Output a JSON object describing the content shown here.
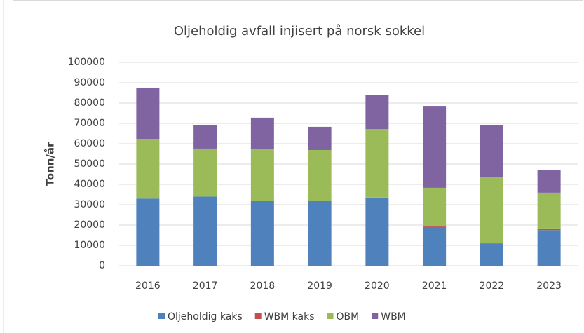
{
  "chart_data": {
    "type": "stacked_bar",
    "title": "Oljeholdig avfall injisert på norsk sokkel",
    "y_label": "Tonn/år",
    "categories": [
      "2016",
      "2017",
      "2018",
      "2019",
      "2020",
      "2021",
      "2022",
      "2023"
    ],
    "series": [
      {
        "name": "Oljeholdig kaks",
        "color": "#4f81bd",
        "values": [
          33000,
          34000,
          32000,
          32000,
          33500,
          19000,
          11000,
          17500
        ]
      },
      {
        "name": "WBM kaks",
        "color": "#c0504d",
        "values": [
          0,
          0,
          0,
          0,
          0,
          500,
          0,
          800
        ]
      },
      {
        "name": "OBM",
        "color": "#9bbb59",
        "values": [
          29400,
          23600,
          25200,
          24900,
          33700,
          18800,
          32400,
          17600
        ]
      },
      {
        "name": "WBM",
        "color": "#8064a2",
        "values": [
          25200,
          11700,
          15600,
          11400,
          16900,
          40300,
          25600,
          11300
        ]
      }
    ],
    "ylim": [
      0,
      100000
    ],
    "yticks": [
      0,
      10000,
      20000,
      30000,
      40000,
      50000,
      60000,
      70000,
      80000,
      90000,
      100000
    ],
    "grid": true,
    "legend": "bottom"
  }
}
